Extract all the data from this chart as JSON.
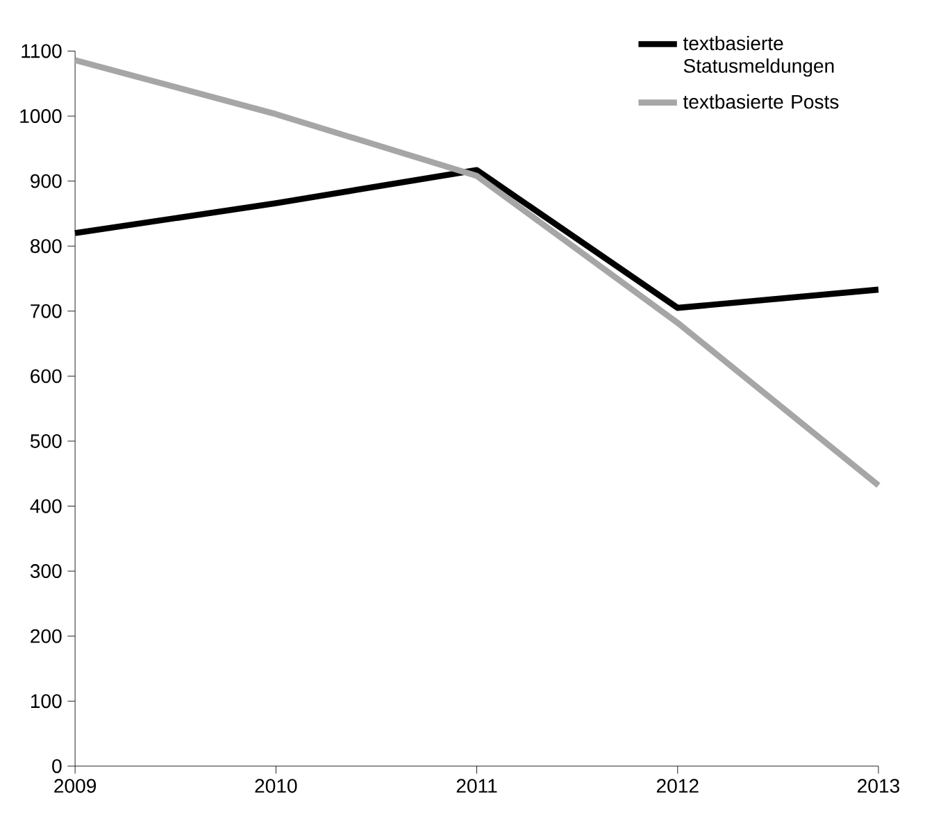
{
  "chart_data": {
    "type": "line",
    "x": [
      2009,
      2010,
      2011,
      2012,
      2013
    ],
    "xlim": [
      2009,
      2013
    ],
    "xticks": [
      2009,
      2010,
      2011,
      2012,
      2013
    ],
    "ylim": [
      0,
      1100
    ],
    "yticks": [
      0,
      100,
      200,
      300,
      400,
      500,
      600,
      700,
      800,
      900,
      1000,
      1100
    ],
    "legend": "top right",
    "grid": false,
    "marker": "none",
    "line_style": "solid",
    "series": [
      {
        "name": "textbasierte Statusmeldungen",
        "color": "#000000",
        "values": [
          820,
          866,
          917,
          705,
          733
        ]
      },
      {
        "name": "textbasierte Posts",
        "color": "#a6a6a6",
        "values": [
          1086,
          1003,
          908,
          682,
          432
        ]
      }
    ]
  }
}
